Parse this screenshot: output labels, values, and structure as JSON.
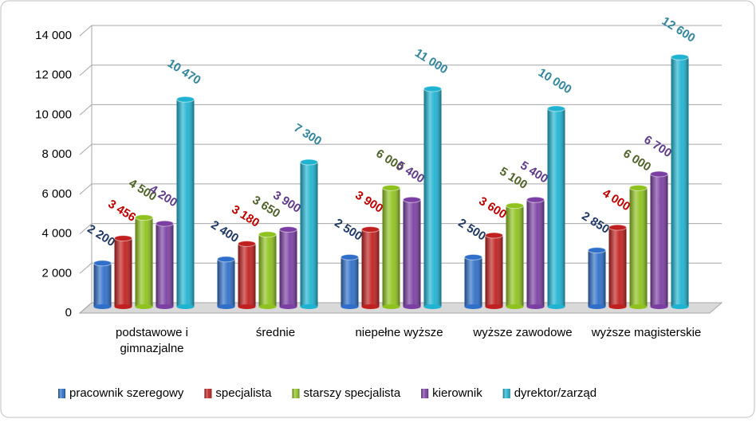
{
  "chart_data": {
    "type": "bar",
    "categories": [
      "podstawowe i gimnazjalne",
      "średnie",
      "niepełne wyższe",
      "wyższe zawodowe",
      "wyższe magisterskie"
    ],
    "series": [
      {
        "name": "pracownik szeregowy",
        "color": "#2f6fc9",
        "label_color": "#1f3864",
        "values": [
          2200,
          2400,
          2500,
          2500,
          2850
        ],
        "value_labels": [
          "2 200",
          "2 400",
          "2 500",
          "2 500",
          "2 850"
        ]
      },
      {
        "name": "specjalista",
        "color": "#c0201f",
        "label_color": "#c00000",
        "values": [
          3456,
          3180,
          3900,
          3600,
          4000
        ],
        "value_labels": [
          "3 456",
          "3 180",
          "3 900",
          "3 600",
          "4 000"
        ]
      },
      {
        "name": "starszy specjalista",
        "color": "#8fc21e",
        "label_color": "#4f6228",
        "values": [
          4500,
          3650,
          6000,
          5100,
          6000
        ],
        "value_labels": [
          "4 500",
          "3 650",
          "6 000",
          "5 100",
          "6 000"
        ]
      },
      {
        "name": "kierownik",
        "color": "#7b3fa3",
        "label_color": "#5f3c8a",
        "values": [
          4200,
          3900,
          5400,
          5400,
          6700
        ],
        "value_labels": [
          "4 200",
          "3 900",
          "5 400",
          "5 400",
          "6 700"
        ]
      },
      {
        "name": "dyrektor/zarząd",
        "color": "#1fb3d1",
        "label_color": "#31859c",
        "values": [
          10470,
          7300,
          11000,
          10000,
          12600
        ],
        "value_labels": [
          "10 470",
          "7 300",
          "11 000",
          "10 000",
          "12 600"
        ]
      }
    ],
    "ylim": [
      0,
      14000
    ],
    "yticks": [
      0,
      {
        "value": 2000,
        "label": "2 000"
      },
      {
        "value": 4000,
        "label": "4 000"
      },
      {
        "value": 6000,
        "label": "6 000"
      },
      {
        "value": 8000,
        "label": "8 000"
      },
      {
        "value": 10000,
        "label": "10 000"
      },
      {
        "value": 12000,
        "label": "12 000"
      },
      {
        "value": 14000,
        "label": "14 000"
      }
    ],
    "grid": true,
    "legend": "bottom"
  }
}
